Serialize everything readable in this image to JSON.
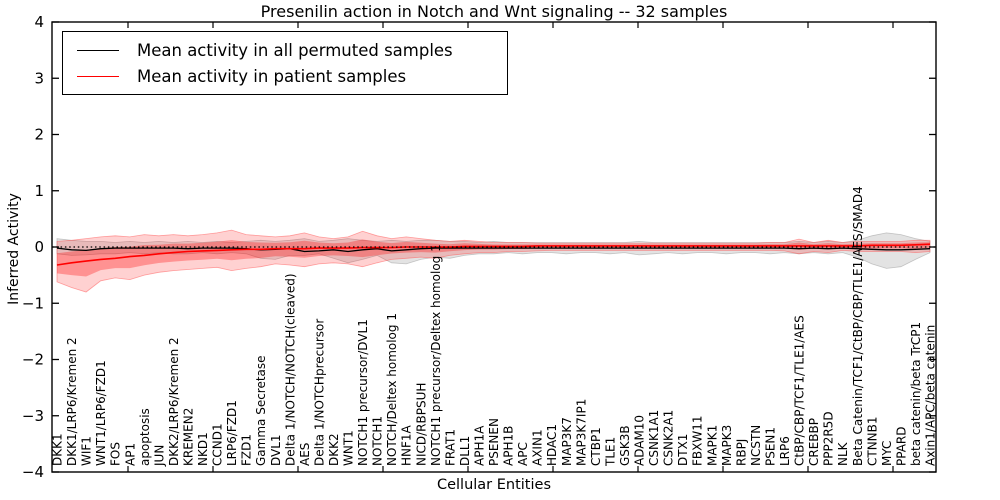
{
  "title": "Presenilin action in Notch and Wnt signaling -- 32 samples",
  "legend": {
    "items": [
      {
        "label": "Mean activity in all permuted samples",
        "color": "#000000"
      },
      {
        "label": "Mean activity in patient samples",
        "color": "#ff0000"
      }
    ]
  },
  "axes": {
    "ylabel": "Inferred Activity",
    "xlabel": "Cellular Entities",
    "ytick_labels": [
      "4",
      "3",
      "2",
      "1",
      "0",
      "−1",
      "−2",
      "−3",
      "−4"
    ],
    "ylim": [
      -4,
      4
    ]
  },
  "chart_data": {
    "type": "line",
    "title": "Presenilin action in Notch and Wnt signaling -- 32 samples",
    "xlabel": "Cellular Entities",
    "ylabel": "Inferred Activity",
    "ylim": [
      -4,
      4
    ],
    "yticks": [
      4,
      3,
      2,
      1,
      0,
      -1,
      -2,
      -3,
      -4
    ],
    "grid": false,
    "legend_position": "upper left",
    "zero_line": {
      "style": "dotted",
      "color": "#000000",
      "y": 0
    },
    "categories": [
      "DKK1",
      "DKK1/LRP6/Kremen 2",
      "WIF1",
      "WNT1/LRP6/FZD1",
      "FOS",
      "AP1",
      "apoptosis",
      "JUN",
      "DKK2/LRP6/Kremen 2",
      "KREMEN2",
      "NKD1",
      "CCND1",
      "LRP6/FZD1",
      "FZD1",
      "Gamma Secretase",
      "DVL1",
      "Delta 1/NOTCH/NOTCH(cleaved)",
      "AES",
      "Delta 1/NOTCHprecursor",
      "DKK2",
      "WNT1",
      "NOTCH1 precursor/DVL1",
      "NOTCH1",
      "NOTCH/Deltex homolog 1",
      "HNF1A",
      "NICD/RBPSUH",
      "NOTCH1 precursor/Deltex homolog 1",
      "FRAT1",
      "DLL1",
      "APH1A",
      "PSENEN",
      "APH1B",
      "APC",
      "AXIN1",
      "HDAC1",
      "MAP3K7",
      "MAP3K7IP1",
      "CTBP1",
      "TLE1",
      "GSK3B",
      "ADAM10",
      "CSNK1A1",
      "CSNK2A1",
      "DTX1",
      "FBXW11",
      "MAPK1",
      "MAPK3",
      "RBPJ",
      "NCSTN",
      "PSEN1",
      "LRP6",
      "CtBP/CBP/TCF1/TLE1/AES",
      "CREBBP",
      "PPP2R5D",
      "NLK",
      "Beta Catenin/TCF1/CtBP/CBP/TLE1/AES/SMAD4",
      "CTNNB1",
      "MYC",
      "PPARD",
      "beta catenin/beta TrCP1",
      "Axin1/APC/beta catenin"
    ],
    "series": [
      {
        "name": "Mean activity in all permuted samples",
        "color": "#000000",
        "values": [
          -0.02,
          -0.05,
          -0.06,
          -0.03,
          -0.02,
          -0.02,
          -0.02,
          -0.02,
          -0.02,
          -0.03,
          -0.02,
          -0.02,
          -0.02,
          -0.03,
          -0.05,
          -0.04,
          -0.03,
          -0.08,
          -0.07,
          -0.05,
          -0.08,
          -0.05,
          -0.03,
          -0.07,
          -0.05,
          -0.03,
          -0.02,
          -0.02,
          -0.02,
          -0.02,
          -0.02,
          -0.02,
          -0.02,
          -0.02,
          -0.02,
          -0.02,
          -0.02,
          -0.02,
          -0.02,
          -0.02,
          -0.02,
          -0.02,
          -0.02,
          -0.02,
          -0.02,
          -0.02,
          -0.02,
          -0.02,
          -0.02,
          -0.02,
          -0.02,
          -0.03,
          -0.02,
          -0.03,
          -0.02,
          -0.03,
          -0.04,
          -0.05,
          -0.05,
          -0.04,
          -0.03
        ]
      },
      {
        "name": "Mean activity in patient samples",
        "color": "#ff0000",
        "values": [
          -0.32,
          -0.28,
          -0.25,
          -0.22,
          -0.2,
          -0.17,
          -0.15,
          -0.12,
          -0.1,
          -0.08,
          -0.07,
          -0.06,
          -0.05,
          -0.04,
          -0.04,
          -0.03,
          -0.03,
          -0.03,
          -0.02,
          -0.02,
          -0.02,
          -0.01,
          -0.01,
          -0.01,
          0.0,
          0.0,
          0.0,
          0.0,
          0.01,
          0.01,
          0.01,
          0.01,
          0.01,
          0.02,
          0.02,
          0.02,
          0.02,
          0.02,
          0.02,
          0.02,
          0.02,
          0.02,
          0.02,
          0.02,
          0.02,
          0.02,
          0.02,
          0.02,
          0.02,
          0.02,
          0.02,
          0.02,
          0.02,
          0.02,
          0.02,
          0.02,
          0.03,
          0.03,
          0.03,
          0.04,
          0.05
        ]
      }
    ],
    "bands": [
      {
        "name": "permuted-samples-range",
        "color": "#999999",
        "opacity": 0.28,
        "lo": [
          -0.12,
          -0.15,
          -0.14,
          -0.12,
          -0.12,
          -0.1,
          -0.12,
          -0.1,
          -0.12,
          -0.12,
          -0.1,
          -0.12,
          -0.1,
          -0.12,
          -0.2,
          -0.22,
          -0.15,
          -0.15,
          -0.12,
          -0.2,
          -0.28,
          -0.22,
          -0.15,
          -0.28,
          -0.3,
          -0.22,
          -0.18,
          -0.2,
          -0.15,
          -0.12,
          -0.12,
          -0.1,
          -0.12,
          -0.1,
          -0.1,
          -0.12,
          -0.1,
          -0.1,
          -0.12,
          -0.1,
          -0.14,
          -0.12,
          -0.1,
          -0.12,
          -0.1,
          -0.1,
          -0.12,
          -0.1,
          -0.1,
          -0.12,
          -0.1,
          -0.12,
          -0.1,
          -0.12,
          -0.1,
          -0.18,
          -0.3,
          -0.38,
          -0.35,
          -0.22,
          -0.1
        ],
        "hi": [
          0.15,
          0.12,
          0.1,
          0.1,
          0.08,
          0.1,
          0.08,
          0.1,
          0.08,
          0.1,
          0.08,
          0.1,
          0.08,
          0.1,
          0.12,
          0.1,
          0.12,
          0.15,
          0.1,
          0.12,
          0.15,
          0.12,
          0.1,
          0.12,
          0.1,
          0.12,
          0.12,
          0.1,
          0.1,
          0.08,
          0.1,
          0.08,
          0.08,
          0.08,
          0.08,
          0.08,
          0.08,
          0.08,
          0.08,
          0.08,
          0.1,
          0.08,
          0.08,
          0.08,
          0.08,
          0.08,
          0.08,
          0.08,
          0.08,
          0.08,
          0.08,
          0.1,
          0.08,
          0.1,
          0.08,
          0.12,
          0.2,
          0.25,
          0.22,
          0.15,
          0.1
        ]
      },
      {
        "name": "patient-samples-range",
        "color": "#ff0000",
        "opacity": 0.18,
        "lo": [
          -0.62,
          -0.72,
          -0.8,
          -0.6,
          -0.55,
          -0.58,
          -0.5,
          -0.45,
          -0.42,
          -0.4,
          -0.38,
          -0.36,
          -0.42,
          -0.38,
          -0.35,
          -0.3,
          -0.32,
          -0.35,
          -0.3,
          -0.28,
          -0.3,
          -0.35,
          -0.28,
          -0.22,
          -0.2,
          -0.18,
          -0.2,
          -0.15,
          -0.12,
          -0.1,
          -0.1,
          -0.08,
          -0.08,
          -0.07,
          -0.06,
          -0.06,
          -0.06,
          -0.06,
          -0.06,
          -0.06,
          -0.06,
          -0.06,
          -0.06,
          -0.06,
          -0.06,
          -0.06,
          -0.06,
          -0.06,
          -0.06,
          -0.06,
          -0.07,
          -0.12,
          -0.08,
          -0.1,
          -0.06,
          -0.08,
          -0.08,
          -0.08,
          -0.08,
          -0.1,
          -0.08
        ],
        "hi": [
          0.1,
          0.12,
          0.15,
          0.18,
          0.2,
          0.18,
          0.22,
          0.2,
          0.22,
          0.2,
          0.22,
          0.25,
          0.3,
          0.22,
          0.2,
          0.18,
          0.2,
          0.25,
          0.18,
          0.15,
          0.18,
          0.28,
          0.2,
          0.15,
          0.18,
          0.15,
          0.12,
          0.1,
          0.12,
          0.1,
          0.08,
          0.08,
          0.08,
          0.07,
          0.07,
          0.07,
          0.07,
          0.07,
          0.07,
          0.07,
          0.07,
          0.07,
          0.07,
          0.07,
          0.07,
          0.07,
          0.07,
          0.07,
          0.07,
          0.08,
          0.08,
          0.14,
          0.08,
          0.12,
          0.08,
          0.1,
          0.1,
          0.1,
          0.1,
          0.12,
          0.12
        ]
      }
    ]
  }
}
